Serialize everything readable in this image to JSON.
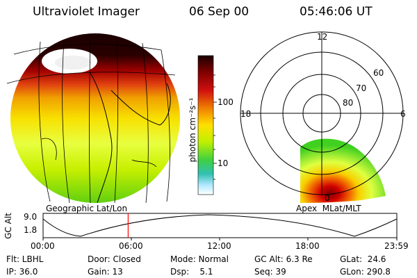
{
  "header": {
    "instrument": "Ultraviolet Imager",
    "date": "06 Sep 00",
    "time": "05:46:06 UT"
  },
  "left_panel": {
    "label": "Geographic Lat/Lon"
  },
  "right_panel": {
    "label": "Apex  MLat/MLT",
    "mlt_labels": [
      "12",
      "18",
      "6",
      "0"
    ],
    "mlat_labels": [
      "60",
      "70",
      "80"
    ]
  },
  "colorbar": {
    "unit_label": "photon cm⁻²s⁻¹",
    "ticks": [
      "100",
      "10"
    ],
    "scale": "log",
    "colors": [
      "#1a0000",
      "#b00000",
      "#e04000",
      "#f0a000",
      "#ffff40",
      "#80e000",
      "#30d0a0",
      "#c0f0ff",
      "#ffffff"
    ]
  },
  "altitude_plot": {
    "ylabel": "GC Alt",
    "ymax_label": "9.0",
    "ymin_label": "1.8",
    "x_ticks": [
      "00:00",
      "06:00",
      "12:00",
      "18:00",
      "23:59"
    ],
    "marker_time": "05:46",
    "marker_color": "#ff0000"
  },
  "status": {
    "row1": {
      "flt": "Flt: LBHL",
      "door": "Door: Closed",
      "mode": "Mode: Normal",
      "gc_alt": "GC Alt: 6.3 Re",
      "glat": "GLat:  24.6"
    },
    "row2": {
      "ip": "IP: 36.0",
      "gain": "Gain: 13",
      "dsp": "Dsp:    5.1",
      "seq": "Seq: 39",
      "glon": "GLon: 290.8"
    }
  }
}
